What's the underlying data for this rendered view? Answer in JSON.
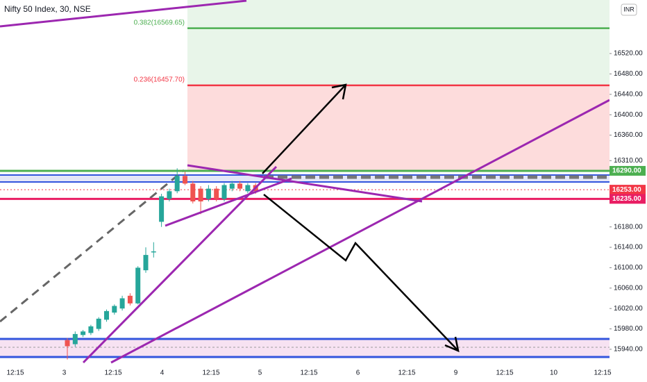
{
  "chart_data": {
    "type": "candlestick",
    "title": "Nifty 50 Index, 30, NSE",
    "currency": "INR",
    "ylim": [
      15914,
      16625
    ],
    "yticks": [
      {
        "value": 15940,
        "label": "15940.00"
      },
      {
        "value": 15980,
        "label": "15980.00"
      },
      {
        "value": 16020,
        "label": "16020.00"
      },
      {
        "value": 16060,
        "label": "16060.00"
      },
      {
        "value": 16100,
        "label": "16100.00"
      },
      {
        "value": 16140,
        "label": "16140.00"
      },
      {
        "value": 16180,
        "label": "16180.00"
      },
      {
        "value": 16310,
        "label": "16310.00"
      },
      {
        "value": 16360,
        "label": "16360.00"
      },
      {
        "value": 16400,
        "label": "16400.00"
      },
      {
        "value": 16440,
        "label": "16440.00"
      },
      {
        "value": 16480,
        "label": "16480.00"
      },
      {
        "value": 16520,
        "label": "16520.00"
      }
    ],
    "grid": false,
    "x_labels": [
      "12:15",
      "3",
      "12:15",
      "4",
      "12:15",
      "5",
      "12:15",
      "6",
      "12:15",
      "9",
      "12:15",
      "10",
      "12:15"
    ],
    "candles": {
      "open": [
        15958,
        15950,
        15968,
        15972,
        15980,
        15998,
        16012,
        16020,
        16045,
        16030,
        16095,
        16130,
        16190,
        16235,
        16250,
        16280,
        16265,
        16255,
        16235,
        16255,
        16235,
        16255,
        16265,
        16250,
        16262
      ],
      "high": [
        15962,
        15975,
        15978,
        15988,
        16003,
        16018,
        16028,
        16045,
        16050,
        16103,
        16140,
        16150,
        16245,
        16255,
        16295,
        16288,
        16270,
        16260,
        16262,
        16260,
        16266,
        16270,
        16270,
        16266,
        16266
      ],
      "low": [
        15920,
        15945,
        15964,
        15968,
        15976,
        15994,
        16008,
        16016,
        16026,
        16028,
        16090,
        16120,
        16180,
        16230,
        16246,
        16262,
        16226,
        16205,
        16230,
        16230,
        16230,
        16250,
        16250,
        16246,
        16245
      ],
      "close": [
        15946,
        15970,
        15975,
        15985,
        16000,
        16015,
        16025,
        16040,
        16030,
        16100,
        16125,
        16132,
        16240,
        16250,
        16280,
        16265,
        16230,
        16230,
        16255,
        16235,
        16262,
        16265,
        16255,
        16262,
        16250
      ]
    },
    "up_color": "#26a69a",
    "down_color": "#ef5350",
    "levels": [
      {
        "value": 16290,
        "label": "16290.00",
        "color": "#4caf50"
      },
      {
        "value": 16253,
        "label": "16253.00",
        "color": "#f23645"
      },
      {
        "value": 16235,
        "label": "16235.00",
        "color": "#e91e63"
      }
    ],
    "fib_levels": [
      {
        "label": "0.382(16569.65)",
        "value": 16569.65,
        "color": "#4caf50"
      },
      {
        "label": "0.236(16457.70)",
        "value": 16457.7,
        "color": "#f23645"
      }
    ]
  }
}
